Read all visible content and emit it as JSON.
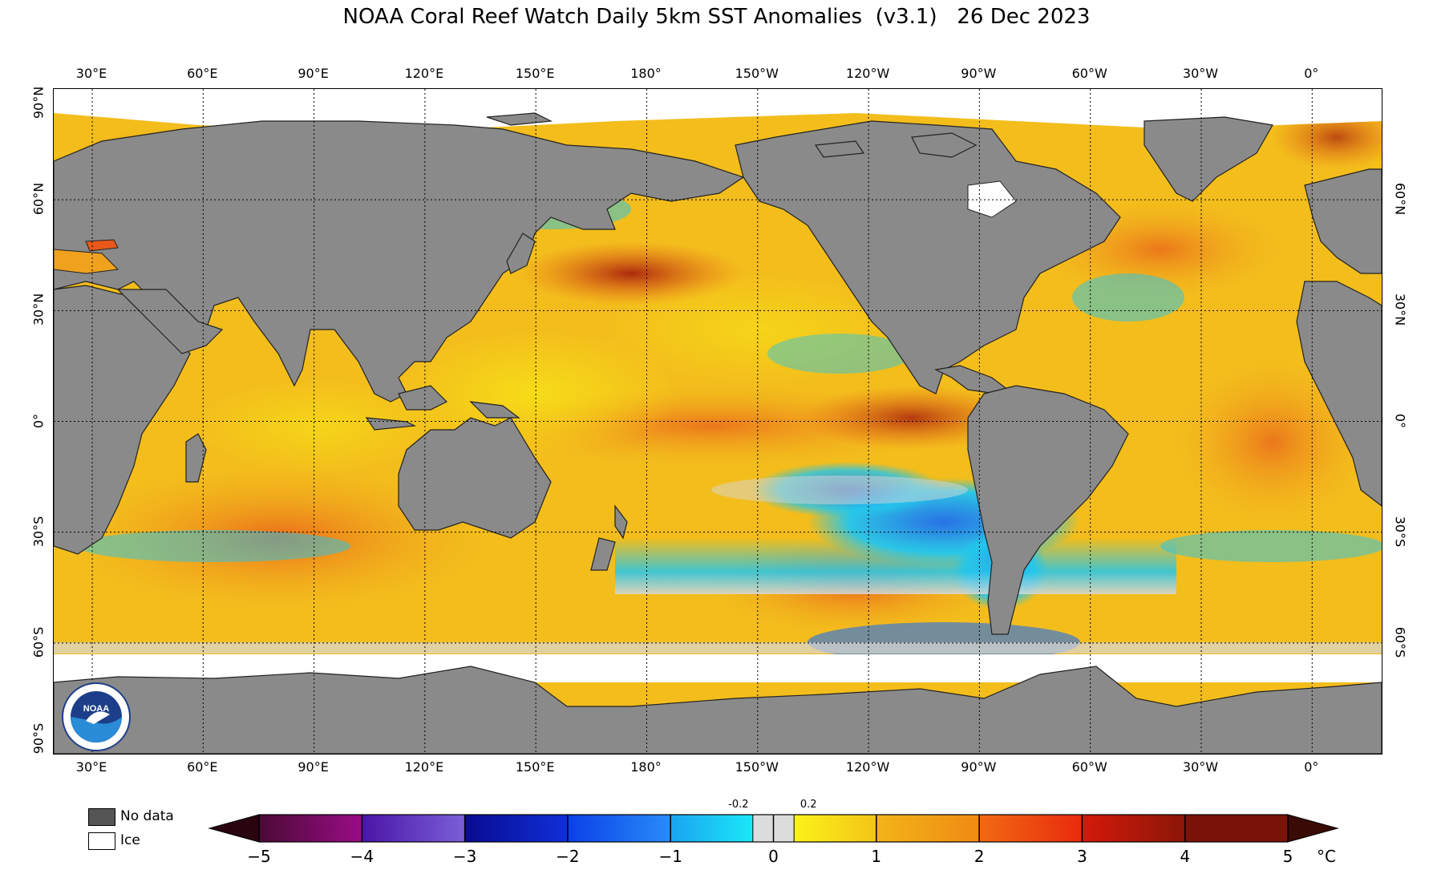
{
  "title": "NOAA Coral Reef Watch Daily 5km SST Anomalies  (v3.1)   26 Dec 2023",
  "lon_labels": [
    "30°E",
    "60°E",
    "90°E",
    "120°E",
    "150°E",
    "180°",
    "150°W",
    "120°W",
    "90°W",
    "60°W",
    "30°W",
    "0°"
  ],
  "lat_labels_left": [
    "90°N",
    "60°N",
    "30°N",
    "0°",
    "30°S",
    "60°S",
    "90°S"
  ],
  "lat_labels_right": [
    "60°N",
    "30°N",
    "0°",
    "30°S",
    "60°S"
  ],
  "legend": {
    "no_data": "No data",
    "ice": "Ice",
    "no_data_color": "#555555",
    "ice_color": "#ffffff"
  },
  "colorbar": {
    "unit": "°C",
    "tick_labels": [
      "−5",
      "−4",
      "−3",
      "−2",
      "−1",
      "0",
      "1",
      "2",
      "3",
      "4",
      "5"
    ],
    "small_labels": [
      "-0.2",
      "0.2"
    ],
    "range": [
      -5,
      5
    ]
  },
  "colors": {
    "land": "#8a8a8a",
    "ice": "#ffffff",
    "near_zero": "#d8d8d8",
    "warm_1": "#f7df17",
    "warm_2": "#f0a21e",
    "warm_3": "#e8581a",
    "warm_4": "#b8230f",
    "cool_1": "#22c6ee",
    "cool_2": "#1e6df0"
  },
  "logo_text": "NOAA"
}
